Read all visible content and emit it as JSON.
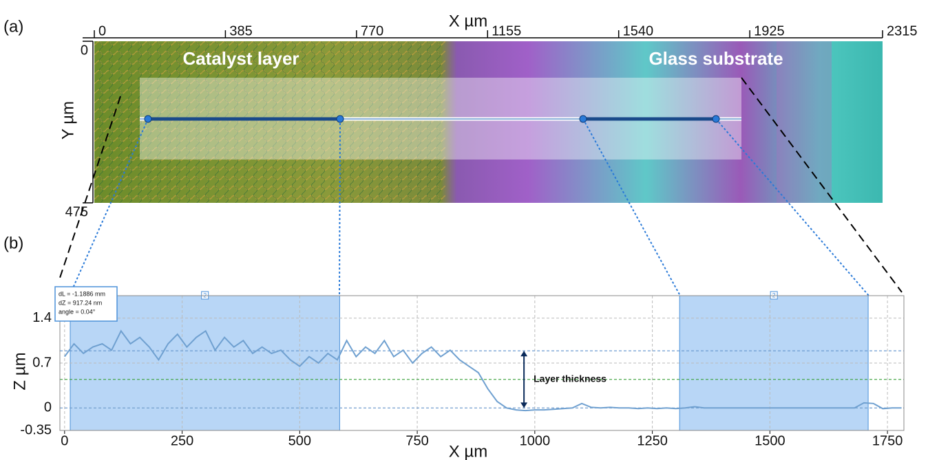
{
  "chart_data": [
    {
      "type": "image",
      "panel": "(a)",
      "xlabel": "X µm",
      "ylabel": "Y µm",
      "xlim": [
        0,
        2315
      ],
      "xticks": [
        0,
        385,
        770,
        1155,
        1540,
        1925,
        2315
      ],
      "ylim": [
        0,
        475
      ],
      "yticks": [
        0,
        475
      ],
      "annotations": [
        "Catalyst layer",
        "Glass substrate"
      ]
    },
    {
      "type": "line",
      "panel": "(b)",
      "xlabel": "X µm",
      "ylabel": "Z µm",
      "xlim": [
        -10,
        1785
      ],
      "xticks": [
        0,
        250,
        500,
        750,
        1000,
        1250,
        1500,
        1750
      ],
      "ylim": [
        -0.35,
        1.75
      ],
      "yticks": [
        -0.35,
        0,
        0.7,
        1.4
      ],
      "grid": true,
      "color": "#6fa0d0",
      "x": [
        0,
        20,
        40,
        60,
        80,
        100,
        120,
        140,
        160,
        180,
        200,
        220,
        240,
        260,
        280,
        300,
        320,
        340,
        360,
        380,
        400,
        420,
        440,
        460,
        480,
        500,
        520,
        540,
        560,
        580,
        600,
        620,
        640,
        660,
        680,
        700,
        720,
        740,
        760,
        780,
        800,
        820,
        840,
        860,
        880,
        900,
        920,
        940,
        960,
        980,
        1000,
        1020,
        1040,
        1060,
        1080,
        1100,
        1120,
        1140,
        1160,
        1180,
        1200,
        1220,
        1240,
        1260,
        1280,
        1300,
        1320,
        1340,
        1360,
        1380,
        1400,
        1420,
        1440,
        1460,
        1480,
        1500,
        1520,
        1540,
        1560,
        1580,
        1600,
        1620,
        1640,
        1660,
        1680,
        1700,
        1720,
        1740,
        1760,
        1780
      ],
      "values": [
        0.8,
        1.0,
        0.85,
        0.95,
        1.0,
        0.9,
        1.2,
        1.0,
        1.1,
        0.95,
        0.75,
        1.0,
        1.15,
        0.95,
        1.1,
        1.2,
        0.9,
        1.1,
        0.95,
        1.05,
        0.85,
        0.95,
        0.85,
        0.9,
        0.75,
        0.65,
        0.8,
        0.7,
        0.85,
        0.75,
        1.05,
        0.8,
        0.95,
        0.85,
        1.05,
        0.8,
        0.9,
        0.7,
        0.85,
        0.95,
        0.8,
        0.9,
        0.75,
        0.65,
        0.55,
        0.3,
        0.1,
        0.0,
        -0.03,
        -0.04,
        -0.03,
        -0.03,
        -0.02,
        -0.01,
        0.0,
        0.07,
        0.01,
        0.0,
        0.01,
        0.0,
        0.0,
        -0.01,
        0.0,
        -0.01,
        0.0,
        -0.01,
        0.0,
        0.02,
        0.0,
        0.0,
        0.0,
        0.0,
        0.0,
        0.0,
        0.0,
        0.0,
        0.0,
        0.0,
        0.0,
        0.0,
        0.0,
        0.0,
        0.0,
        0.0,
        0.0,
        0.08,
        0.07,
        -0.01,
        0.0,
        0.0
      ],
      "regions": [
        [
          12,
          585
        ],
        [
          1308,
          1709
        ]
      ],
      "region_labels": [
        "2",
        "2"
      ],
      "hlines": [
        {
          "value": 0.89,
          "color": "#6b9bd1"
        },
        {
          "value": 0.445,
          "color": "#3aa03a"
        },
        {
          "value": 0,
          "color": "#6b9bd1"
        }
      ],
      "arrow": {
        "x": 977,
        "from": 0,
        "to": 0.89,
        "label": "Layer thickness"
      },
      "info": [
        "dL = -1.1886 mm",
        "dZ = 917.24 nm",
        "angle = 0.04°"
      ]
    }
  ]
}
